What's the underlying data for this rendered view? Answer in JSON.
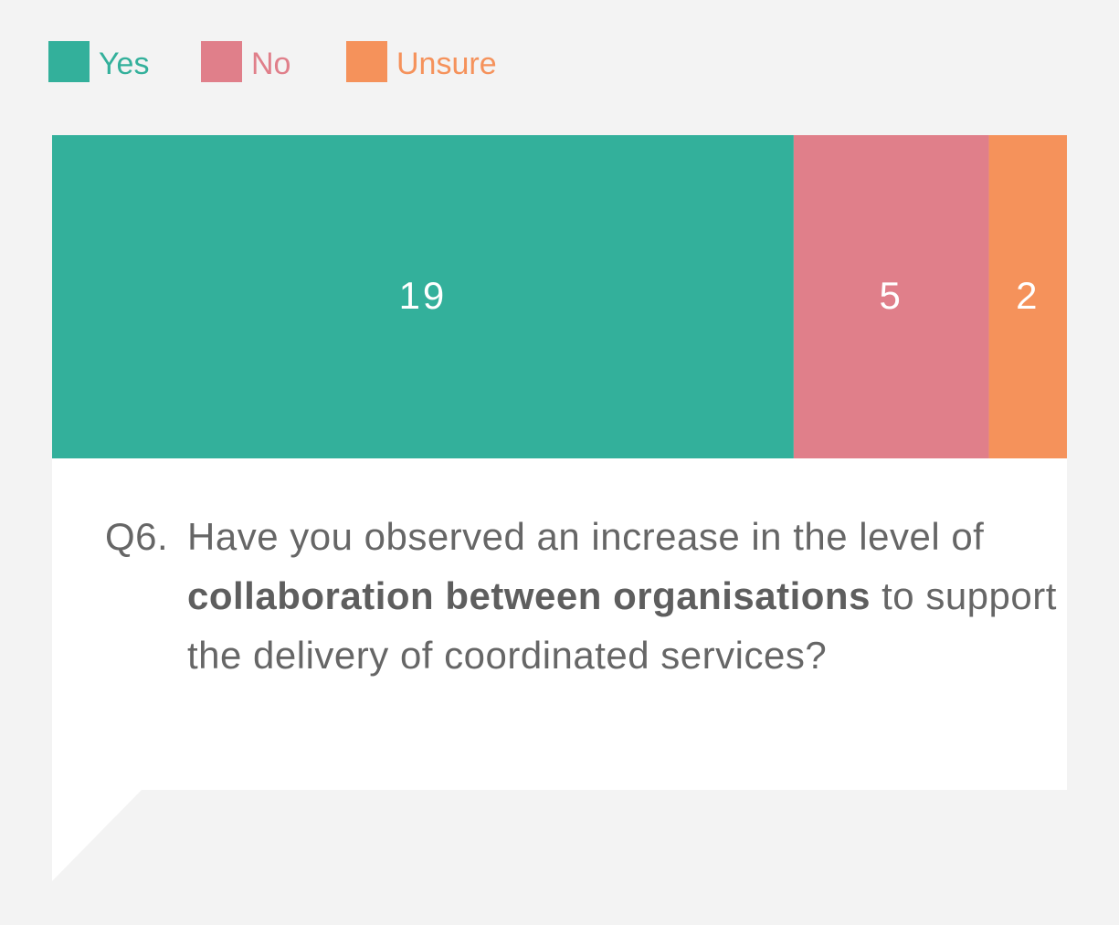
{
  "chart_data": {
    "type": "stacked_bar",
    "series": [
      {
        "name": "Yes",
        "color": "#33b09b",
        "values": [
          19
        ]
      },
      {
        "name": "No",
        "color": "#e07f8a",
        "values": [
          5
        ]
      },
      {
        "name": "Unsure",
        "color": "#f5925b",
        "values": [
          2
        ]
      }
    ],
    "question": {
      "number": "Q6.",
      "parts": [
        {
          "text": "Have you observed an increase in the level of ",
          "bold": false
        },
        {
          "text": "collaboration between organisations",
          "bold": true
        },
        {
          "text": " to support the delivery of coordinated services?",
          "bold": false
        }
      ]
    }
  }
}
